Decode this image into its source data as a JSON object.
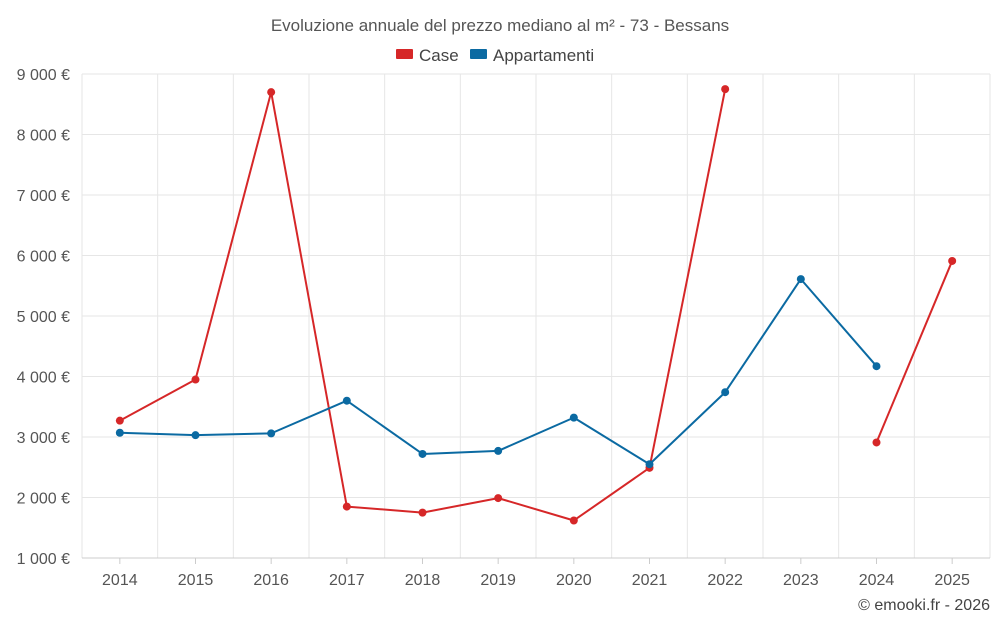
{
  "chart_data": {
    "type": "line",
    "title": "Evoluzione annuale del prezzo mediano al m² - 73 - Bessans",
    "xlabel": "",
    "ylabel": "",
    "categories": [
      "2014",
      "2015",
      "2016",
      "2017",
      "2018",
      "2019",
      "2020",
      "2021",
      "2022",
      "2023",
      "2024",
      "2025"
    ],
    "ylim": [
      1000,
      9000
    ],
    "yticks": [
      1000,
      2000,
      3000,
      4000,
      5000,
      6000,
      7000,
      8000,
      9000
    ],
    "ytick_labels": [
      "1 000 €",
      "2 000 €",
      "3 000 €",
      "4 000 €",
      "5 000 €",
      "6 000 €",
      "7 000 €",
      "8 000 €",
      "9 000 €"
    ],
    "grid": true,
    "legend_position": "top-center",
    "series": [
      {
        "name": "Case",
        "color": "#d62728",
        "values": [
          3270,
          3950,
          8700,
          1850,
          1750,
          1990,
          1620,
          2490,
          8750,
          null,
          2910,
          5910
        ]
      },
      {
        "name": "Appartamenti",
        "color": "#0b6aa2",
        "values": [
          3070,
          3030,
          3060,
          3600,
          2720,
          2770,
          3320,
          2550,
          3740,
          5610,
          4170,
          null
        ]
      }
    ],
    "credit": "© emooki.fr - 2026"
  }
}
